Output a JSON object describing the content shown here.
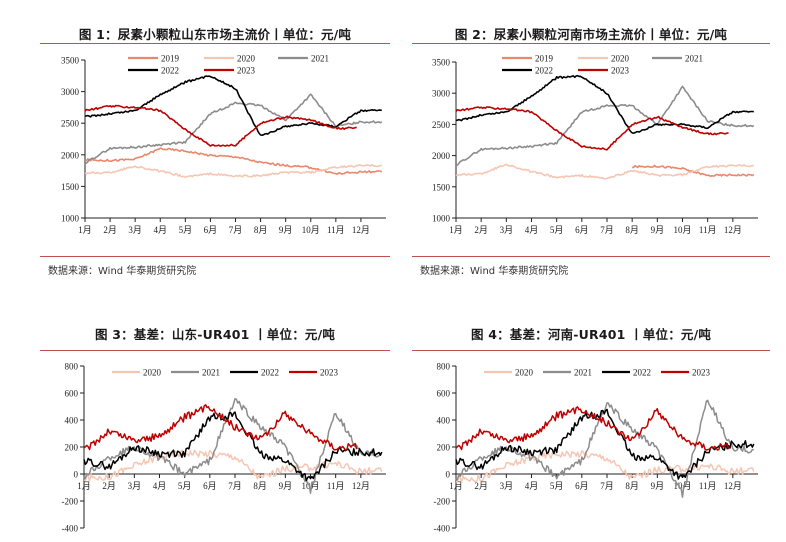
{
  "colors": {
    "y2019": "#e8876a",
    "y2020": "#f5c6b4",
    "y2021": "#8c8c8c",
    "y2022": "#000000",
    "y2023": "#c00000",
    "rule": "#c0504d"
  },
  "months": [
    "1月",
    "2月",
    "3月",
    "4月",
    "5月",
    "6月",
    "7月",
    "8月",
    "9月",
    "10月",
    "11月",
    "12月"
  ],
  "panels": {
    "fig1": {
      "title": "图 1：尿素小颗粒山东市场主流价丨单位：元/吨",
      "source": "数据来源：Wind  华泰期货研究院"
    },
    "fig2": {
      "title": "图 2：尿素小颗粒河南市场主流价丨单位：元/吨",
      "source": "数据来源：Wind  华泰期货研究院"
    },
    "fig3": {
      "title": "图 3：基差：山东-UR401 丨单位：元/吨"
    },
    "fig4": {
      "title": "图 4：基差：河南-UR401 丨单位：元/吨"
    }
  },
  "chart_data": [
    {
      "id": "fig1",
      "type": "line",
      "title": "图 1：尿素小颗粒山东市场主流价丨单位：元/吨",
      "xlabel": "",
      "ylabel": "元/吨",
      "ylim": [
        1000,
        3500
      ],
      "yticks": [
        1000,
        1500,
        2000,
        2500,
        3000,
        3500
      ],
      "x": [
        "1月",
        "2月",
        "3月",
        "4月",
        "5月",
        "6月",
        "7月",
        "8月",
        "9月",
        "10月",
        "11月",
        "12月"
      ],
      "grid": false,
      "legend_position": "top",
      "series": [
        {
          "name": "2019",
          "values": [
            1920,
            1910,
            1930,
            2100,
            2060,
            1990,
            1970,
            1880,
            1830,
            1800,
            1700,
            1730
          ]
        },
        {
          "name": "2020",
          "values": [
            1710,
            1720,
            1820,
            1740,
            1650,
            1700,
            1660,
            1670,
            1720,
            1720,
            1800,
            1830
          ]
        },
        {
          "name": "2021",
          "values": [
            1870,
            2100,
            2120,
            2160,
            2200,
            2650,
            2820,
            2780,
            2550,
            2950,
            2450,
            2520
          ]
        },
        {
          "name": "2022",
          "values": [
            2600,
            2650,
            2700,
            2950,
            3150,
            3250,
            3050,
            2300,
            2450,
            2500,
            2450,
            2700
          ]
        },
        {
          "name": "2023",
          "values": [
            2700,
            2770,
            2750,
            2700,
            2400,
            2150,
            2150,
            2500,
            2600,
            2550,
            2420,
            null
          ]
        }
      ]
    },
    {
      "id": "fig2",
      "type": "line",
      "title": "图 2：尿素小颗粒河南市场主流价丨单位：元/吨",
      "xlabel": "",
      "ylabel": "元/吨",
      "ylim": [
        1000,
        3500
      ],
      "yticks": [
        1000,
        1500,
        2000,
        2500,
        3000,
        3500
      ],
      "x": [
        "1月",
        "2月",
        "3月",
        "4月",
        "5月",
        "6月",
        "7月",
        "8月",
        "9月",
        "10月",
        "11月",
        "12月"
      ],
      "grid": false,
      "legend_position": "top",
      "series": [
        {
          "name": "2019",
          "values": [
            null,
            null,
            null,
            null,
            null,
            null,
            null,
            1820,
            1830,
            1790,
            1680,
            1690
          ]
        },
        {
          "name": "2020",
          "values": [
            1690,
            1710,
            1860,
            1740,
            1650,
            1680,
            1630,
            1760,
            1680,
            1690,
            1820,
            1840
          ]
        },
        {
          "name": "2021",
          "values": [
            1850,
            2100,
            2120,
            2150,
            2200,
            2700,
            2800,
            2800,
            2500,
            3100,
            2550,
            2480
          ]
        },
        {
          "name": "2022",
          "values": [
            2550,
            2650,
            2700,
            2950,
            3250,
            3270,
            3000,
            2350,
            2500,
            2500,
            2450,
            2700
          ]
        },
        {
          "name": "2023",
          "values": [
            2720,
            2770,
            2750,
            2700,
            2400,
            2150,
            2100,
            2500,
            2620,
            2450,
            2350,
            null
          ]
        }
      ]
    },
    {
      "id": "fig3",
      "type": "line",
      "title": "图 3：基差：山东-UR401 丨单位：元/吨",
      "xlabel": "",
      "ylabel": "元/吨",
      "ylim": [
        -400,
        800
      ],
      "yticks": [
        -400,
        -200,
        0,
        200,
        400,
        600,
        800
      ],
      "x": [
        "1月",
        "2月",
        "3月",
        "4月",
        "5月",
        "6月",
        "7月",
        "8月",
        "9月",
        "10月",
        "11月",
        "12月"
      ],
      "grid": false,
      "legend_position": "top",
      "series": [
        {
          "name": "2020",
          "values": [
            -30,
            -20,
            60,
            130,
            160,
            150,
            130,
            -30,
            40,
            50,
            80,
            20
          ]
        },
        {
          "name": "2021",
          "values": [
            -20,
            120,
            200,
            120,
            0,
            100,
            550,
            350,
            200,
            -120,
            450,
            150
          ]
        },
        {
          "name": "2022",
          "values": [
            100,
            50,
            200,
            150,
            150,
            420,
            440,
            150,
            100,
            -50,
            170,
            160
          ]
        },
        {
          "name": "2023",
          "values": [
            170,
            320,
            250,
            280,
            420,
            500,
            350,
            260,
            450,
            300,
            200,
            null
          ]
        }
      ]
    },
    {
      "id": "fig4",
      "type": "line",
      "title": "图 4：基差：河南-UR401 丨单位：元/吨",
      "xlabel": "",
      "ylabel": "元/吨",
      "ylim": [
        -400,
        800
      ],
      "yticks": [
        -400,
        -200,
        0,
        200,
        400,
        600,
        800
      ],
      "x": [
        "1月",
        "2月",
        "3月",
        "4月",
        "5月",
        "6月",
        "7月",
        "8月",
        "9月",
        "10月",
        "11月",
        "12月"
      ],
      "grid": false,
      "legend_position": "top",
      "series": [
        {
          "name": "2020",
          "values": [
            -40,
            -30,
            60,
            120,
            150,
            150,
            120,
            -30,
            30,
            40,
            60,
            20
          ]
        },
        {
          "name": "2021",
          "values": [
            -30,
            120,
            200,
            120,
            -20,
            100,
            520,
            330,
            180,
            -150,
            550,
            180
          ]
        },
        {
          "name": "2022",
          "values": [
            100,
            50,
            200,
            160,
            180,
            420,
            460,
            130,
            120,
            -40,
            170,
            220
          ]
        },
        {
          "name": "2023",
          "values": [
            170,
            320,
            250,
            280,
            430,
            480,
            380,
            250,
            470,
            260,
            200,
            null
          ]
        }
      ]
    }
  ]
}
